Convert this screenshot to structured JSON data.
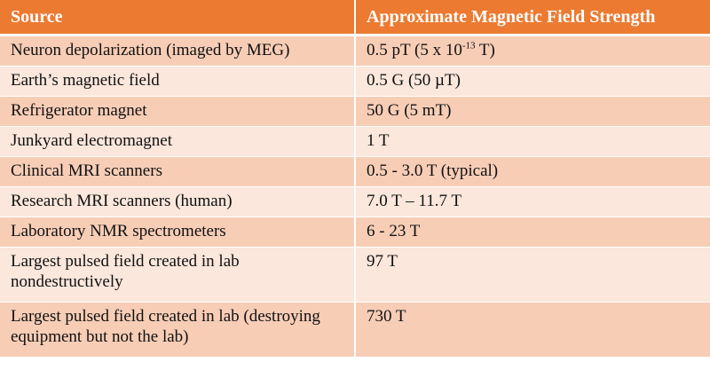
{
  "table": {
    "headers": [
      "Source",
      "Approximate Magnetic Field Strength"
    ],
    "rows": [
      {
        "source": "Neuron depolarization (imaged by MEG)",
        "strength_pre": "0.5 pT (5 x 10",
        "strength_exp": "-13",
        "strength_post": " T)"
      },
      {
        "source": "Earth’s magnetic field",
        "strength": "0.5 G (50 µT)"
      },
      {
        "source": "Refrigerator magnet",
        "strength": "50 G (5 mT)"
      },
      {
        "source": "Junkyard electromagnet",
        "strength": "1 T"
      },
      {
        "source": "Clinical MRI scanners",
        "strength": "0.5 - 3.0 T (typical)"
      },
      {
        "source": "Research MRI scanners (human)",
        "strength": "7.0 T – 11.7 T"
      },
      {
        "source": "Laboratory NMR spectrometers",
        "strength": "6 - 23 T"
      },
      {
        "source": "Largest pulsed field created in lab nondestructively",
        "strength": "97 T"
      },
      {
        "source": "Largest pulsed field created in lab (destroying equipment but not the lab)",
        "strength": "730 T"
      }
    ]
  },
  "colors": {
    "header_bg": "#ec7a31",
    "row_dark": "#f7cdb6",
    "row_light": "#fbe7dc"
  }
}
